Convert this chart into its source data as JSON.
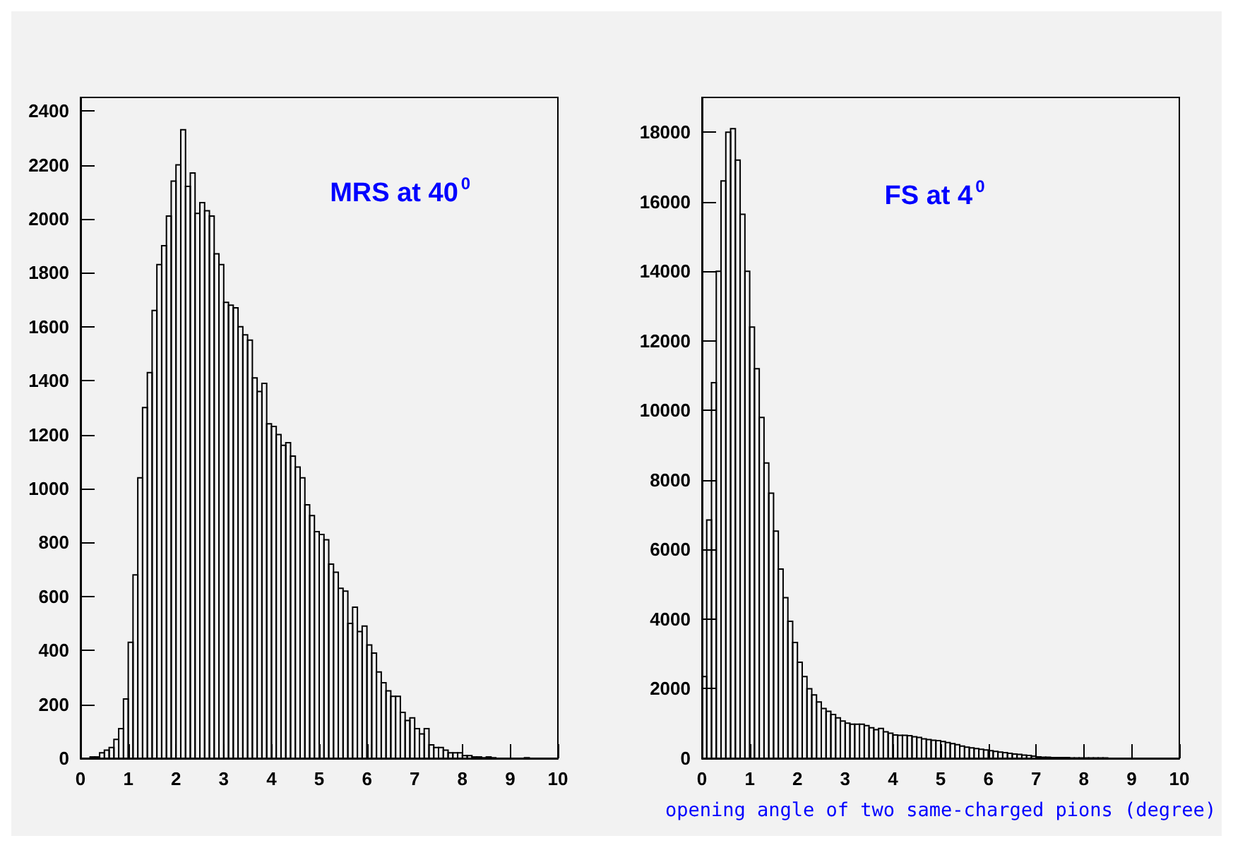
{
  "chart_data": [
    {
      "type": "histogram",
      "color": "#000000",
      "bins": [
        0,
        0.1,
        0.2,
        0.3,
        0.4,
        0.5,
        0.6,
        0.7,
        0.8,
        0.9,
        1,
        1.1,
        1.2,
        1.3,
        1.4,
        1.5,
        1.6,
        1.7,
        1.8,
        1.9,
        2,
        2.1,
        2.2,
        2.3,
        2.4,
        2.5,
        2.6,
        2.7,
        2.8,
        2.9,
        3,
        3.1,
        3.2,
        3.3,
        3.4,
        3.5,
        3.6,
        3.7,
        3.8,
        3.9,
        4,
        4.1,
        4.2,
        4.3,
        4.4,
        4.5,
        4.6,
        4.7,
        4.8,
        4.9,
        5,
        5.1,
        5.2,
        5.3,
        5.4,
        5.5,
        5.6,
        5.7,
        5.8,
        5.9,
        6,
        6.1,
        6.2,
        6.3,
        6.4,
        6.5,
        6.6,
        6.7,
        6.8,
        6.9,
        7,
        7.1,
        7.2,
        7.3,
        7.4,
        7.5,
        7.6,
        7.7,
        7.8,
        7.9,
        8,
        8.1,
        8.2,
        8.3,
        8.4,
        8.5,
        8.6,
        8.7,
        8.8,
        8.9,
        9,
        9.1,
        9.2,
        9.3,
        9.4,
        9.5,
        9.6,
        9.7,
        9.8,
        9.9,
        10
      ],
      "values": [
        0,
        0,
        5,
        5,
        20,
        30,
        40,
        70,
        110,
        220,
        430,
        680,
        1040,
        1300,
        1430,
        1660,
        1830,
        1900,
        2010,
        2140,
        2200,
        2330,
        2120,
        2170,
        2020,
        2060,
        2030,
        2010,
        1870,
        1830,
        1690,
        1680,
        1670,
        1600,
        1570,
        1550,
        1410,
        1360,
        1390,
        1240,
        1230,
        1200,
        1160,
        1170,
        1120,
        1080,
        1040,
        940,
        900,
        840,
        830,
        810,
        720,
        690,
        630,
        620,
        500,
        560,
        470,
        490,
        420,
        390,
        320,
        280,
        250,
        230,
        230,
        170,
        140,
        150,
        110,
        90,
        110,
        50,
        40,
        40,
        30,
        20,
        20,
        20,
        10,
        10,
        5,
        5,
        2,
        5,
        2,
        0,
        0,
        0,
        0,
        0,
        0,
        2,
        0,
        0,
        0,
        0,
        0,
        0
      ],
      "xlim": [
        0,
        10
      ],
      "xticks": [
        0,
        1,
        2,
        3,
        4,
        5,
        6,
        7,
        8,
        9,
        10
      ],
      "ylim": [
        0,
        2450
      ],
      "yticks": [
        0,
        200,
        400,
        600,
        800,
        1000,
        1200,
        1400,
        1600,
        1800,
        2000,
        2200,
        2400
      ],
      "annotations": [
        "MRS at 40$^{0}$"
      ]
    },
    {
      "type": "histogram",
      "color": "#000000",
      "bins": [
        0,
        0.1,
        0.2,
        0.3,
        0.4,
        0.5,
        0.6,
        0.7,
        0.8,
        0.9,
        1,
        1.1,
        1.2,
        1.3,
        1.4,
        1.5,
        1.6,
        1.7,
        1.8,
        1.9,
        2,
        2.1,
        2.2,
        2.3,
        2.4,
        2.5,
        2.6,
        2.7,
        2.8,
        2.9,
        3,
        3.1,
        3.2,
        3.3,
        3.4,
        3.5,
        3.6,
        3.7,
        3.8,
        3.9,
        4,
        4.1,
        4.2,
        4.3,
        4.4,
        4.5,
        4.6,
        4.7,
        4.8,
        4.9,
        5,
        5.1,
        5.2,
        5.3,
        5.4,
        5.5,
        5.6,
        5.7,
        5.8,
        5.9,
        6,
        6.1,
        6.2,
        6.3,
        6.4,
        6.5,
        6.6,
        6.7,
        6.8,
        6.9,
        7,
        7.1,
        7.2,
        7.3,
        7.4,
        7.5,
        7.6,
        7.7,
        7.8,
        7.9,
        8,
        8.1,
        8.2,
        8.3,
        8.4,
        8.5,
        8.6,
        8.7,
        8.8,
        8.9,
        9,
        9.1,
        9.2,
        9.3,
        9.4,
        9.5,
        9.6,
        9.7,
        9.8,
        9.9,
        10
      ],
      "values": [
        2350,
        6850,
        10800,
        14000,
        16600,
        18000,
        18100,
        17200,
        15640,
        14000,
        12400,
        11200,
        9800,
        8490,
        7620,
        6530,
        5440,
        4620,
        3940,
        3330,
        2760,
        2350,
        2000,
        1820,
        1620,
        1430,
        1350,
        1260,
        1160,
        1070,
        1010,
        980,
        980,
        980,
        940,
        880,
        820,
        860,
        760,
        720,
        670,
        660,
        660,
        650,
        620,
        600,
        560,
        540,
        520,
        510,
        480,
        450,
        420,
        390,
        350,
        320,
        300,
        280,
        260,
        240,
        220,
        200,
        180,
        160,
        140,
        120,
        110,
        90,
        80,
        60,
        40,
        30,
        30,
        20,
        20,
        20,
        20,
        10,
        10,
        10,
        10,
        10,
        10,
        10,
        10,
        0,
        0,
        0,
        0,
        0,
        0,
        0,
        0,
        0,
        0,
        0,
        0,
        0,
        0,
        0
      ],
      "xlim": [
        0,
        10
      ],
      "xticks": [
        0,
        1,
        2,
        3,
        4,
        5,
        6,
        7,
        8,
        9,
        10
      ],
      "ylim": [
        0,
        19000
      ],
      "yticks": [
        0,
        2000,
        4000,
        6000,
        8000,
        10000,
        12000,
        14000,
        16000,
        18000
      ],
      "xlabel": "opening angle of two same-charged pions (degree)",
      "annotations": [
        "FS at 4$^{0}$"
      ]
    }
  ]
}
